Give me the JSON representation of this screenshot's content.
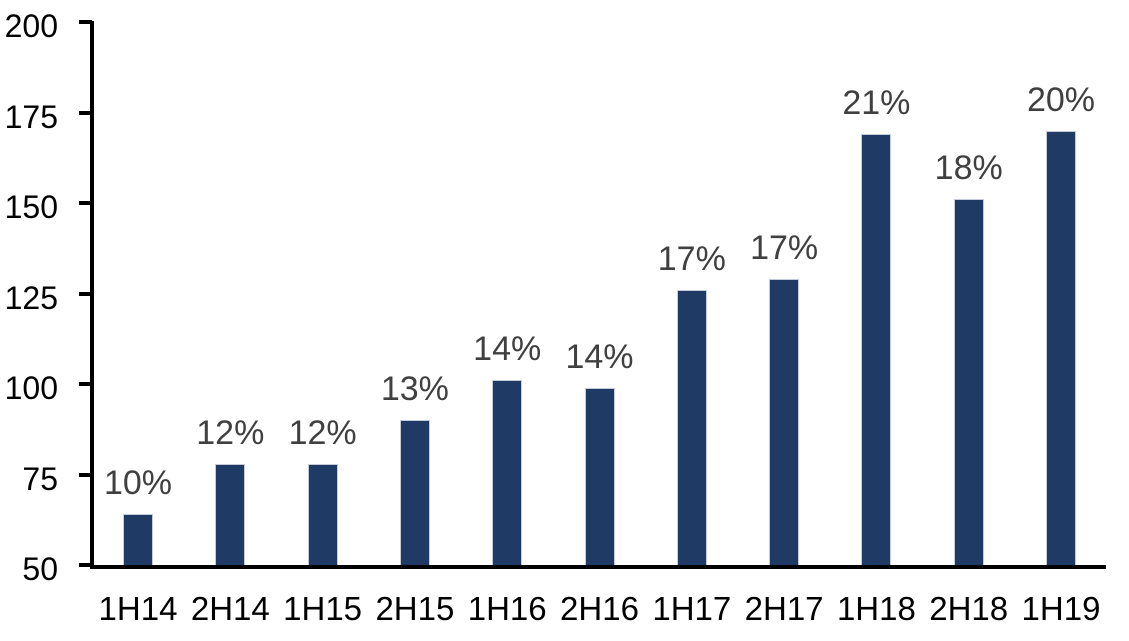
{
  "chart_data": {
    "type": "bar",
    "title": "",
    "xlabel": "",
    "ylabel": "",
    "categories": [
      "1H14",
      "2H14",
      "1H15",
      "2H15",
      "1H16",
      "2H16",
      "1H17",
      "2H17",
      "1H18",
      "2H18",
      "1H19"
    ],
    "values": [
      64,
      78,
      78,
      90,
      101,
      99,
      126,
      129,
      169,
      151,
      170
    ],
    "data_labels": [
      "10%",
      "12%",
      "12%",
      "13%",
      "14%",
      "14%",
      "17%",
      "17%",
      "21%",
      "18%",
      "20%"
    ],
    "ylim": [
      50,
      200
    ],
    "yticks": [
      50,
      75,
      100,
      125,
      150,
      175,
      200
    ],
    "grid": false,
    "legend_position": "none",
    "bar_color": "#203A66",
    "data_label_color": "#404040",
    "axis_color": "#000000",
    "tick_label_color": "#000000",
    "background_color": "#ffffff"
  }
}
